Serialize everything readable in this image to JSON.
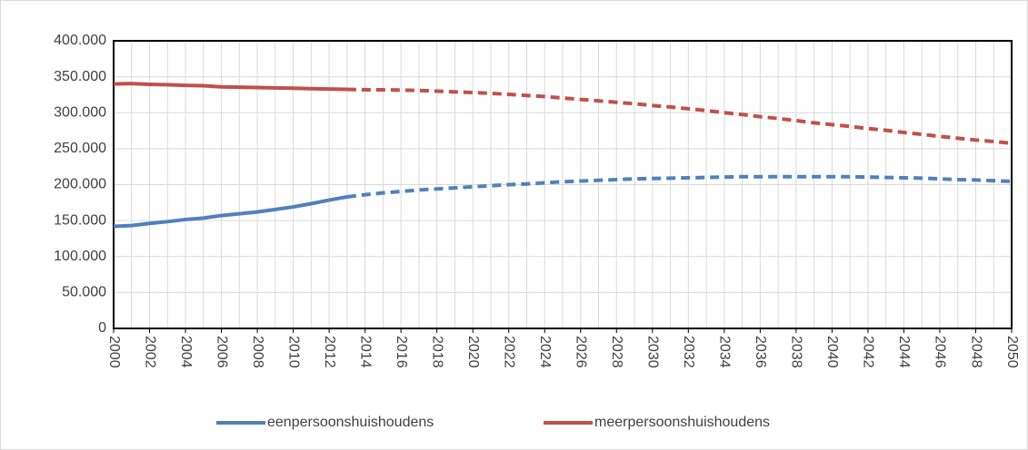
{
  "chart_data": {
    "type": "line",
    "x": [
      2000,
      2001,
      2002,
      2003,
      2004,
      2005,
      2006,
      2007,
      2008,
      2009,
      2010,
      2011,
      2012,
      2013,
      2014,
      2015,
      2016,
      2017,
      2018,
      2019,
      2020,
      2021,
      2022,
      2023,
      2024,
      2025,
      2026,
      2027,
      2028,
      2029,
      2030,
      2031,
      2032,
      2033,
      2034,
      2035,
      2036,
      2037,
      2038,
      2039,
      2040,
      2041,
      2042,
      2043,
      2044,
      2045,
      2046,
      2047,
      2048,
      2049,
      2050
    ],
    "xlim": [
      2000,
      2050
    ],
    "xticks": [
      2000,
      2002,
      2004,
      2006,
      2008,
      2010,
      2012,
      2014,
      2016,
      2018,
      2020,
      2022,
      2024,
      2026,
      2028,
      2030,
      2032,
      2034,
      2036,
      2038,
      2040,
      2042,
      2044,
      2046,
      2048,
      2050
    ],
    "ylim": [
      0,
      400000
    ],
    "yticks": [
      0,
      {
        "value": 50000,
        "label": "50.000"
      },
      {
        "value": 100000,
        "label": "100.000"
      },
      {
        "value": 150000,
        "label": "150.000"
      },
      {
        "value": 200000,
        "label": "200.000"
      },
      {
        "value": 250000,
        "label": "250.000"
      },
      {
        "value": 300000,
        "label": "300.000"
      },
      {
        "value": 350000,
        "label": "350.000"
      },
      {
        "value": 400000,
        "label": "400.000"
      }
    ],
    "grid": true,
    "dashed_from": 2013,
    "legend": "bottom",
    "series": [
      {
        "name": "eenpersoonshuishoudens",
        "color": "#4f81bd",
        "values": [
          142000,
          143000,
          146000,
          148500,
          151500,
          153500,
          157000,
          159500,
          162000,
          165500,
          169000,
          173500,
          178500,
          183000,
          186000,
          188500,
          190500,
          192500,
          194000,
          195500,
          197000,
          198500,
          200000,
          201000,
          202500,
          204000,
          205000,
          206000,
          207000,
          208000,
          208500,
          209000,
          209500,
          210000,
          210500,
          211000,
          211000,
          211000,
          211000,
          211000,
          211000,
          211000,
          210500,
          210000,
          209500,
          209000,
          208000,
          207000,
          206500,
          205500,
          204500
        ]
      },
      {
        "name": "meerpersoonshuishoudens",
        "color": "#c0504d",
        "values": [
          340000,
          340500,
          339500,
          339000,
          338000,
          337500,
          336000,
          335500,
          335000,
          334500,
          334000,
          333500,
          333000,
          332500,
          332000,
          331800,
          331500,
          331000,
          330000,
          329000,
          328000,
          327000,
          325500,
          324000,
          322500,
          320500,
          318500,
          316500,
          314500,
          312500,
          310000,
          308000,
          305500,
          303000,
          300000,
          297500,
          294500,
          292000,
          289000,
          286000,
          283500,
          281000,
          278000,
          275500,
          272500,
          270000,
          267000,
          264500,
          262000,
          260000,
          257500
        ]
      }
    ]
  }
}
